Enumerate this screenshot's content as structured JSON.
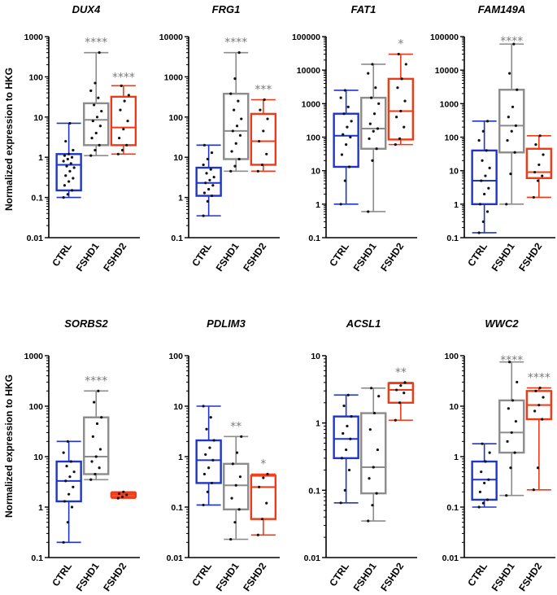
{
  "figure": {
    "ylabel": "Normalized expression to HKG",
    "colors": {
      "CTRL": "#1f35c8",
      "FSHD1": "#8c8c8c",
      "FSHD2": "#f03a17",
      "point": "#111111",
      "axis": "#000000",
      "stars": "#7a7a7a"
    }
  },
  "chart_data": [
    {
      "type": "boxplot",
      "title": "DUX4",
      "yscale": "log",
      "ylim": [
        0.01,
        1000
      ],
      "yticks": [
        "0.01",
        "0.1",
        "1",
        "10",
        "100",
        "1000"
      ],
      "categories": [
        "CTRL",
        "FSHD1",
        "FSHD2"
      ],
      "series": [
        {
          "name": "CTRL",
          "min": 0.1,
          "q1": 0.15,
          "median": 0.65,
          "q3": 1.2,
          "max": 7,
          "points": [
            0.1,
            0.12,
            0.15,
            0.2,
            0.25,
            0.3,
            0.35,
            0.45,
            0.55,
            0.6,
            0.7,
            0.8,
            0.9,
            1.0,
            1.1,
            1.2,
            1.5,
            2.5,
            7
          ]
        },
        {
          "name": "FSHD1",
          "min": 1.1,
          "q1": 2.0,
          "median": 8.5,
          "q3": 22,
          "max": 400,
          "points": [
            1.1,
            1.5,
            2,
            3,
            4,
            6,
            8,
            10,
            14,
            20,
            30,
            45,
            70,
            400
          ]
        },
        {
          "name": "FSHD2",
          "min": 1.2,
          "q1": 2.0,
          "median": 5.5,
          "q3": 32,
          "max": 60,
          "points": [
            1.2,
            1.5,
            2,
            3,
            5,
            8,
            15,
            25,
            35,
            60
          ]
        }
      ],
      "annotations": [
        {
          "over": "FSHD1",
          "text": "****"
        },
        {
          "over": "FSHD2",
          "text": "****"
        }
      ]
    },
    {
      "type": "boxplot",
      "title": "FRG1",
      "yscale": "log",
      "ylim": [
        0.1,
        10000
      ],
      "yticks": [
        "0.1",
        "1",
        "10",
        "100",
        "1000",
        "10000"
      ],
      "categories": [
        "CTRL",
        "FSHD1",
        "FSHD2"
      ],
      "series": [
        {
          "name": "CTRL",
          "min": 0.35,
          "q1": 1.1,
          "median": 2.3,
          "q3": 5.5,
          "max": 20,
          "points": [
            0.35,
            0.8,
            1.1,
            1.3,
            1.6,
            2.0,
            2.3,
            2.7,
            3.2,
            4,
            5,
            6.5,
            9,
            13,
            20
          ]
        },
        {
          "name": "FSHD1",
          "min": 4.5,
          "q1": 9,
          "median": 45,
          "q3": 380,
          "max": 4000,
          "points": [
            4.5,
            6,
            9,
            14,
            22,
            35,
            45,
            60,
            90,
            150,
            250,
            380,
            900,
            4000
          ]
        },
        {
          "name": "FSHD2",
          "min": 4.5,
          "q1": 6.5,
          "median": 25,
          "q3": 120,
          "max": 270,
          "points": [
            4.5,
            6.5,
            12,
            25,
            45,
            90,
            150,
            270
          ]
        }
      ],
      "annotations": [
        {
          "over": "FSHD1",
          "text": "****"
        },
        {
          "over": "FSHD2",
          "text": "***"
        }
      ]
    },
    {
      "type": "boxplot",
      "title": "FAT1",
      "yscale": "log",
      "ylim": [
        0.1,
        100000
      ],
      "yticks": [
        "0.1",
        "1",
        "10",
        "100",
        "1000",
        "10000",
        "100000"
      ],
      "categories": [
        "CTRL",
        "FSHD1",
        "FSHD2"
      ],
      "series": [
        {
          "name": "CTRL",
          "min": 1.0,
          "q1": 13,
          "median": 110,
          "q3": 500,
          "max": 2500,
          "points": [
            1,
            5,
            13,
            30,
            60,
            100,
            120,
            200,
            300,
            500,
            800,
            1500,
            2500
          ]
        },
        {
          "name": "FSHD1",
          "min": 0.6,
          "q1": 45,
          "median": 180,
          "q3": 1500,
          "max": 15000,
          "points": [
            0.6,
            20,
            45,
            90,
            150,
            180,
            250,
            500,
            1000,
            1500,
            3000,
            8000,
            15000
          ]
        },
        {
          "name": "FSHD2",
          "min": 60,
          "q1": 85,
          "median": 600,
          "q3": 5500,
          "max": 30000,
          "points": [
            60,
            90,
            200,
            400,
            600,
            1200,
            3000,
            5500,
            15000,
            30000
          ]
        }
      ],
      "annotations": [
        {
          "over": "FSHD2",
          "text": "*"
        }
      ]
    },
    {
      "type": "boxplot",
      "title": "FAM149A",
      "yscale": "log",
      "ylim": [
        0.1,
        100000
      ],
      "yticks": [
        "0.1",
        "1",
        "10",
        "100",
        "1000",
        "10000",
        "100000"
      ],
      "categories": [
        "CTRL",
        "FSHD1",
        "FSHD2"
      ],
      "series": [
        {
          "name": "CTRL",
          "min": 0.14,
          "q1": 1.0,
          "median": 5,
          "q3": 40,
          "max": 300,
          "points": [
            0.14,
            0.3,
            0.6,
            1,
            2,
            3,
            5,
            7,
            12,
            20,
            40,
            80,
            150,
            300
          ]
        },
        {
          "name": "FSHD1",
          "min": 1.0,
          "q1": 35,
          "median": 220,
          "q3": 2600,
          "max": 60000,
          "points": [
            1,
            8,
            35,
            80,
            150,
            220,
            400,
            800,
            2600,
            8000,
            60000
          ]
        },
        {
          "name": "FSHD2",
          "min": 1.6,
          "q1": 6,
          "median": 9,
          "q3": 45,
          "max": 110,
          "points": [
            1.6,
            5,
            7,
            9,
            15,
            30,
            60,
            110
          ]
        }
      ],
      "annotations": [
        {
          "over": "FSHD1",
          "text": "****"
        }
      ]
    },
    {
      "type": "boxplot",
      "title": "SORBS2",
      "yscale": "log",
      "ylim": [
        0.1,
        1000
      ],
      "yticks": [
        "0.1",
        "1",
        "10",
        "100",
        "1000"
      ],
      "categories": [
        "CTRL",
        "FSHD1",
        "FSHD2"
      ],
      "series": [
        {
          "name": "CTRL",
          "min": 0.2,
          "q1": 1.3,
          "median": 3.3,
          "q3": 8,
          "max": 20,
          "points": [
            0.2,
            0.5,
            1.0,
            1.3,
            1.8,
            2.5,
            3.3,
            4,
            5,
            6.5,
            8,
            12,
            20
          ]
        },
        {
          "name": "FSHD1",
          "min": 3.5,
          "q1": 4.5,
          "median": 10,
          "q3": 60,
          "max": 200,
          "points": [
            3.5,
            4.5,
            6,
            8,
            10,
            14,
            25,
            45,
            60,
            120,
            200
          ]
        },
        {
          "name": "FSHD2",
          "min": 1.5,
          "q1": 1.6,
          "median": 1.75,
          "q3": 1.9,
          "max": 2.0,
          "points": [
            1.5,
            1.6,
            1.75,
            1.85,
            2.0
          ]
        }
      ],
      "annotations": [
        {
          "over": "FSHD1",
          "text": "****"
        }
      ]
    },
    {
      "type": "boxplot",
      "title": "PDLIM3",
      "yscale": "log",
      "ylim": [
        0.01,
        100
      ],
      "yticks": [
        "0.01",
        "0.1",
        "1",
        "10",
        "100"
      ],
      "categories": [
        "CTRL",
        "FSHD1",
        "FSHD2"
      ],
      "series": [
        {
          "name": "CTRL",
          "min": 0.11,
          "q1": 0.3,
          "median": 0.85,
          "q3": 2.1,
          "max": 10,
          "points": [
            0.11,
            0.2,
            0.3,
            0.45,
            0.6,
            0.85,
            1.1,
            1.5,
            2.1,
            3.5,
            6,
            10
          ]
        },
        {
          "name": "FSHD1",
          "min": 0.023,
          "q1": 0.09,
          "median": 0.27,
          "q3": 0.72,
          "max": 2.5,
          "points": [
            0.023,
            0.05,
            0.09,
            0.15,
            0.27,
            0.4,
            0.72,
            1.2,
            2.5
          ]
        },
        {
          "name": "FSHD2",
          "min": 0.028,
          "q1": 0.058,
          "median": 0.25,
          "q3": 0.42,
          "max": 0.45,
          "points": [
            0.028,
            0.058,
            0.12,
            0.25,
            0.38,
            0.45
          ]
        }
      ],
      "annotations": [
        {
          "over": "FSHD1",
          "text": "**"
        },
        {
          "over": "FSHD2",
          "text": "*"
        }
      ]
    },
    {
      "type": "boxplot",
      "title": "ACSL1",
      "yscale": "log",
      "ylim": [
        0.01,
        10
      ],
      "yticks": [
        "0.01",
        "0.1",
        "1",
        "10"
      ],
      "categories": [
        "CTRL",
        "FSHD1",
        "FSHD2"
      ],
      "series": [
        {
          "name": "CTRL",
          "min": 0.065,
          "q1": 0.3,
          "median": 0.58,
          "q3": 1.25,
          "max": 2.6,
          "points": [
            0.065,
            0.1,
            0.2,
            0.3,
            0.4,
            0.58,
            0.7,
            0.9,
            1.25,
            1.8,
            2.6
          ]
        },
        {
          "name": "FSHD1",
          "min": 0.035,
          "q1": 0.09,
          "median": 0.22,
          "q3": 1.4,
          "max": 3.3,
          "points": [
            0.035,
            0.06,
            0.09,
            0.15,
            0.22,
            0.4,
            0.8,
            1.4,
            2.5,
            3.3
          ]
        },
        {
          "name": "FSHD2",
          "min": 1.1,
          "q1": 2.0,
          "median": 3.1,
          "q3": 3.9,
          "max": 4.0,
          "points": [
            1.1,
            2.0,
            2.8,
            3.1,
            3.6,
            4.0
          ]
        }
      ],
      "annotations": [
        {
          "over": "FSHD2",
          "text": "**"
        }
      ]
    },
    {
      "type": "boxplot",
      "title": "WWC2",
      "yscale": "log",
      "ylim": [
        0.01,
        100
      ],
      "yticks": [
        "0.01",
        "0.1",
        "1",
        "10",
        "100"
      ],
      "categories": [
        "CTRL",
        "FSHD1",
        "FSHD2"
      ],
      "series": [
        {
          "name": "CTRL",
          "min": 0.1,
          "q1": 0.14,
          "median": 0.35,
          "q3": 0.8,
          "max": 1.8,
          "points": [
            0.1,
            0.12,
            0.14,
            0.2,
            0.3,
            0.35,
            0.5,
            0.8,
            1.2,
            1.8
          ]
        },
        {
          "name": "FSHD1",
          "min": 0.17,
          "q1": 1.2,
          "median": 3.0,
          "q3": 13,
          "max": 75,
          "points": [
            0.17,
            0.6,
            1.2,
            2,
            3,
            5,
            9,
            13,
            30,
            75
          ]
        },
        {
          "name": "FSHD2",
          "min": 0.22,
          "q1": 5.5,
          "median": 10.5,
          "q3": 20,
          "max": 23,
          "points": [
            0.22,
            0.6,
            5.5,
            8,
            10.5,
            15,
            20,
            23
          ]
        }
      ],
      "annotations": [
        {
          "over": "FSHD1",
          "text": "****"
        },
        {
          "over": "FSHD2",
          "text": "****"
        }
      ]
    }
  ]
}
